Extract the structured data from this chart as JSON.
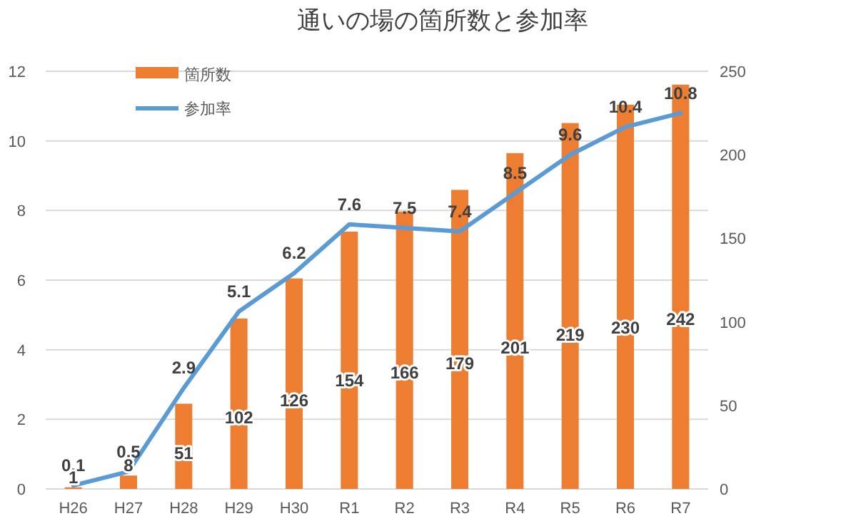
{
  "chart_data": {
    "type": "bar",
    "title": "通いの場の箇所数と参加率",
    "categories": [
      "H26",
      "H27",
      "H28",
      "H29",
      "H30",
      "R1",
      "R2",
      "R3",
      "R4",
      "R5",
      "R6",
      "R7"
    ],
    "series": [
      {
        "name": "箇所数",
        "axis": "y2",
        "color": "#ed7d31",
        "values": [
          1,
          8,
          51,
          102,
          126,
          154,
          166,
          179,
          201,
          219,
          230,
          242
        ]
      },
      {
        "name": "参加率",
        "type": "line",
        "color": "#5b9bd5",
        "values": [
          0.1,
          0.5,
          2.9,
          5.1,
          6.2,
          7.6,
          7.5,
          7.4,
          8.5,
          9.6,
          10.4,
          10.8
        ]
      }
    ],
    "ylim": [
      0,
      12
    ],
    "yticks": [
      0,
      2,
      4,
      6,
      8,
      10,
      12
    ],
    "y2lim": [
      0,
      250
    ],
    "y2ticks": [
      0,
      50,
      100,
      150,
      200,
      250
    ],
    "grid": "y",
    "legend": "top left",
    "data_labels": true,
    "marker": "none",
    "line_style": "solid"
  }
}
